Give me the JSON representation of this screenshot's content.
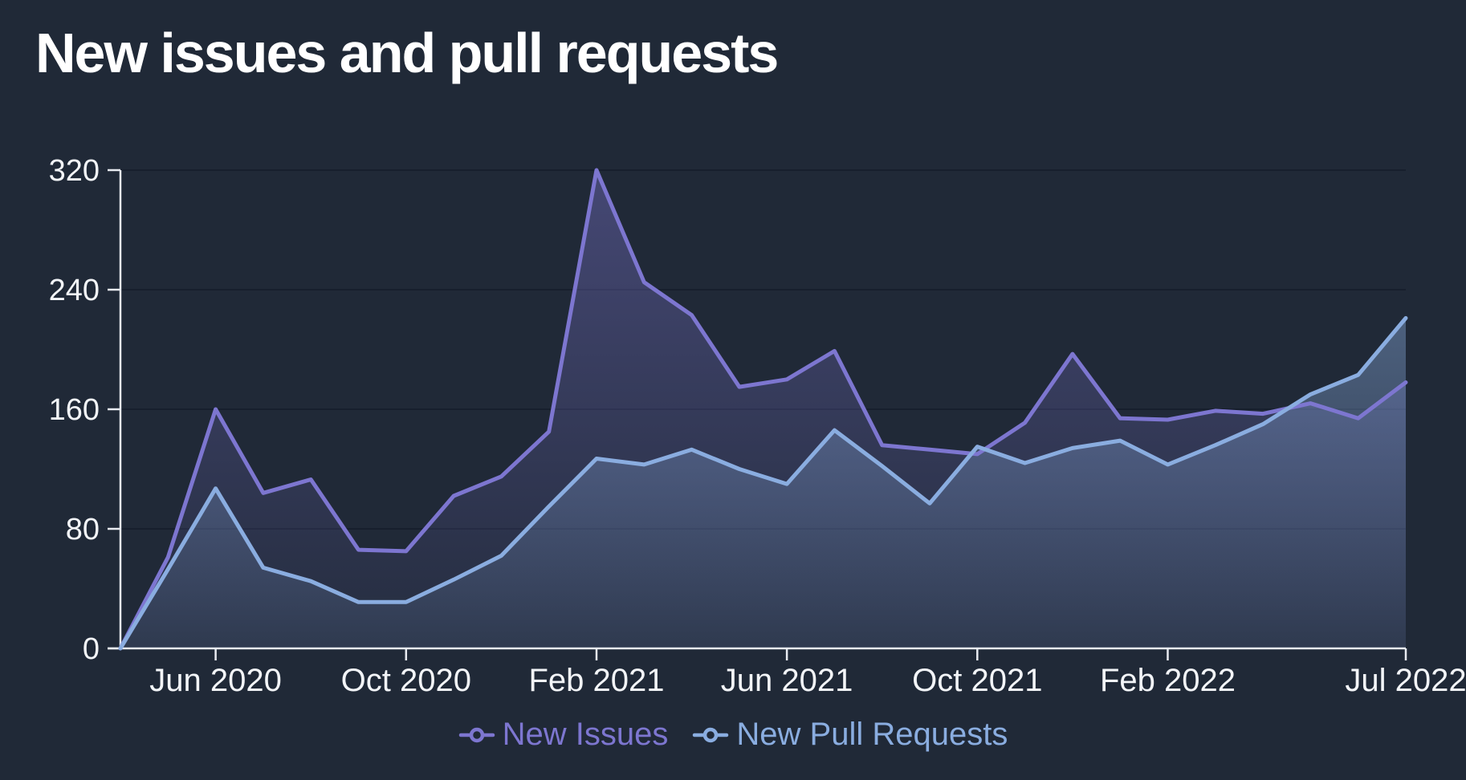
{
  "title": "New issues and pull requests",
  "legend": [
    {
      "label": "New Issues",
      "color": "#7d76d0"
    },
    {
      "label": "New Pull Requests",
      "color": "#8aade0"
    }
  ],
  "colors": {
    "background": "#202937",
    "grid": "#171f2d",
    "axis": "#e8ebf1",
    "label": "#f3f5f8",
    "title": "#ffffff"
  },
  "chart_data": {
    "type": "area",
    "title": "New issues and pull requests",
    "x": [
      "Apr 2020",
      "May 2020",
      "Jun 2020",
      "Jul 2020",
      "Aug 2020",
      "Sep 2020",
      "Oct 2020",
      "Nov 2020",
      "Dec 2020",
      "Jan 2021",
      "Feb 2021",
      "Mar 2021",
      "Apr 2021",
      "May 2021",
      "Jun 2021",
      "Jul 2021",
      "Aug 2021",
      "Sep 2021",
      "Oct 2021",
      "Nov 2021",
      "Dec 2021",
      "Jan 2022",
      "Feb 2022",
      "Mar 2022",
      "Apr 2022",
      "May 2022",
      "Jun 2022",
      "Jul 2022"
    ],
    "series": [
      {
        "name": "New Issues",
        "key": "issues",
        "color": "#7d76d0",
        "values": [
          0,
          61,
          160,
          104,
          113,
          66,
          65,
          102,
          115,
          145,
          320,
          245,
          223,
          175,
          180,
          199,
          136,
          133,
          130,
          151,
          197,
          154,
          153,
          159,
          157,
          164,
          154,
          178
        ]
      },
      {
        "name": "New Pull Requests",
        "key": "pull-requests",
        "color": "#8aade0",
        "values": [
          0,
          53,
          107,
          54,
          45,
          31,
          31,
          46,
          62,
          95,
          127,
          123,
          133,
          120,
          110,
          146,
          122,
          97,
          135,
          124,
          134,
          139,
          123,
          136,
          150,
          170,
          183,
          221
        ]
      }
    ],
    "xlabel": "",
    "ylabel": "",
    "ylim": [
      0,
      320
    ],
    "y_ticks": [
      0,
      80,
      160,
      240,
      320
    ],
    "x_tick_indices": [
      2,
      6,
      10,
      14,
      18,
      22,
      27
    ],
    "x_tick_labels": [
      "Jun 2020",
      "Oct 2020",
      "Feb 2021",
      "Jun 2021",
      "Oct 2021",
      "Feb 2022",
      "Jul 2022"
    ],
    "grid": "horizontal",
    "legend_position": "bottom"
  }
}
